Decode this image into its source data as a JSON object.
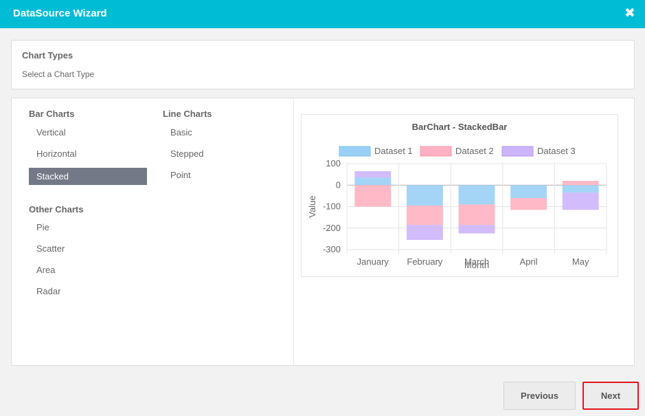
{
  "window": {
    "title": "DataSource Wizard",
    "close_glyph": "✖"
  },
  "header": {
    "title": "Chart Types",
    "subtitle": "Select a Chart Type"
  },
  "categories": {
    "bar": {
      "title": "Bar Charts",
      "items": [
        "Vertical",
        "Horizontal",
        "Stacked"
      ],
      "selected": "Stacked"
    },
    "line": {
      "title": "Line Charts",
      "items": [
        "Basic",
        "Stepped",
        "Point"
      ]
    },
    "other": {
      "title": "Other Charts",
      "items": [
        "Pie",
        "Scatter",
        "Area",
        "Radar"
      ]
    }
  },
  "buttons": {
    "previous": "Previous",
    "next": "Next"
  },
  "colors": {
    "accent": "#00bcd4",
    "selected": "#737986",
    "highlight": "#e0141e"
  },
  "chart_data": {
    "type": "bar",
    "stacked": true,
    "title": "BarChart - StackedBar",
    "xlabel": "Month",
    "ylabel": "Value",
    "categories": [
      "January",
      "February",
      "March",
      "April",
      "May"
    ],
    "ylim": [
      -300,
      100
    ],
    "yticks": [
      100,
      0,
      -100,
      -200,
      -300
    ],
    "legend_position": "top",
    "grid": true,
    "series": [
      {
        "name": "Dataset 1",
        "values": [
          35,
          -95,
          -90,
          -60,
          -35
        ],
        "color": "#9ad0f5",
        "border": "#7cc0ef"
      },
      {
        "name": "Dataset 2",
        "values": [
          -100,
          -90,
          -95,
          -55,
          20
        ],
        "color": "#ffb1c1",
        "border": "#ff97ad"
      },
      {
        "name": "Dataset 3",
        "values": [
          30,
          -70,
          -40,
          0,
          -80
        ],
        "color": "#cdb5fb",
        "border": "#b894f8"
      }
    ]
  }
}
